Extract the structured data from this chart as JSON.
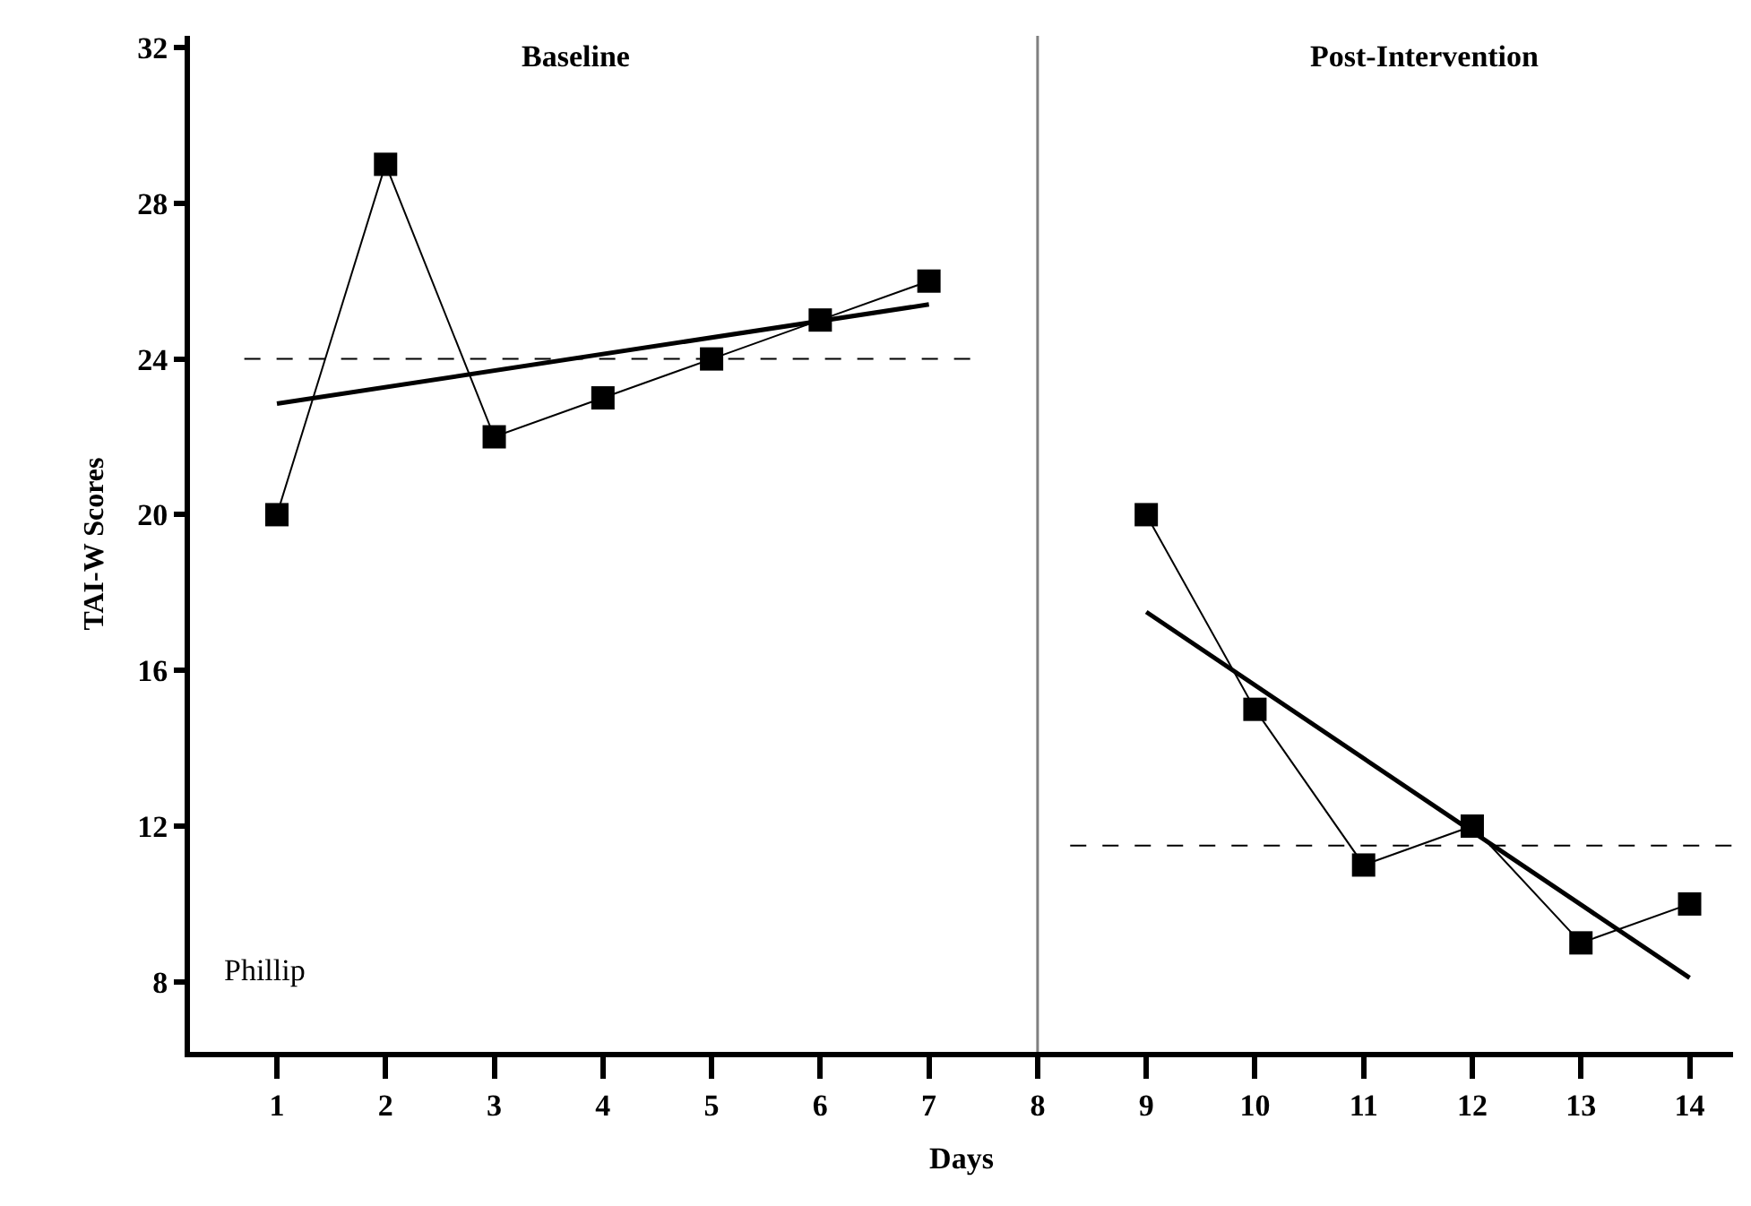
{
  "chart_data": {
    "type": "line",
    "xlabel": "Days",
    "ylabel": "TAI-W Scores",
    "annotations": [
      "Baseline",
      "Post-Intervention",
      "Phillip"
    ],
    "xlim": [
      0.2,
      14.4
    ],
    "xticks": [
      1,
      2,
      3,
      4,
      5,
      6,
      7,
      8,
      9,
      10,
      11,
      12,
      13,
      14
    ],
    "ylim": [
      6.2,
      32.3
    ],
    "yticks": [
      8,
      12,
      16,
      20,
      24,
      28,
      32
    ],
    "ref_lines": [
      {
        "axis": "x",
        "value": 8,
        "color": "#808080"
      }
    ],
    "series": [
      {
        "color": "#000000",
        "marker": "square",
        "line_style": "solid",
        "x": [
          1,
          2,
          3,
          4,
          5,
          6,
          7
        ],
        "values": [
          20,
          29,
          22,
          23,
          24,
          25,
          26
        ]
      },
      {
        "color": "#000000",
        "marker": "square",
        "line_style": "solid",
        "x": [
          9,
          10,
          11,
          12,
          13,
          14
        ],
        "values": [
          20,
          15,
          11,
          12,
          9,
          10
        ]
      },
      {
        "color": "#000000",
        "marker": "none",
        "line_style": "solid",
        "x": [
          1,
          7
        ],
        "values": [
          22.85,
          25.4
        ]
      },
      {
        "color": "#000000",
        "marker": "none",
        "line_style": "solid",
        "x": [
          9,
          14
        ],
        "values": [
          17.5,
          8.1
        ]
      },
      {
        "color": "#000000",
        "marker": "none",
        "line_style": "dashed",
        "x": [
          0.7,
          7.4
        ],
        "values": [
          24,
          24
        ]
      },
      {
        "color": "#000000",
        "marker": "none",
        "line_style": "dashed",
        "x": [
          8.3,
          14.4
        ],
        "values": [
          11.5,
          11.5
        ]
      }
    ]
  }
}
